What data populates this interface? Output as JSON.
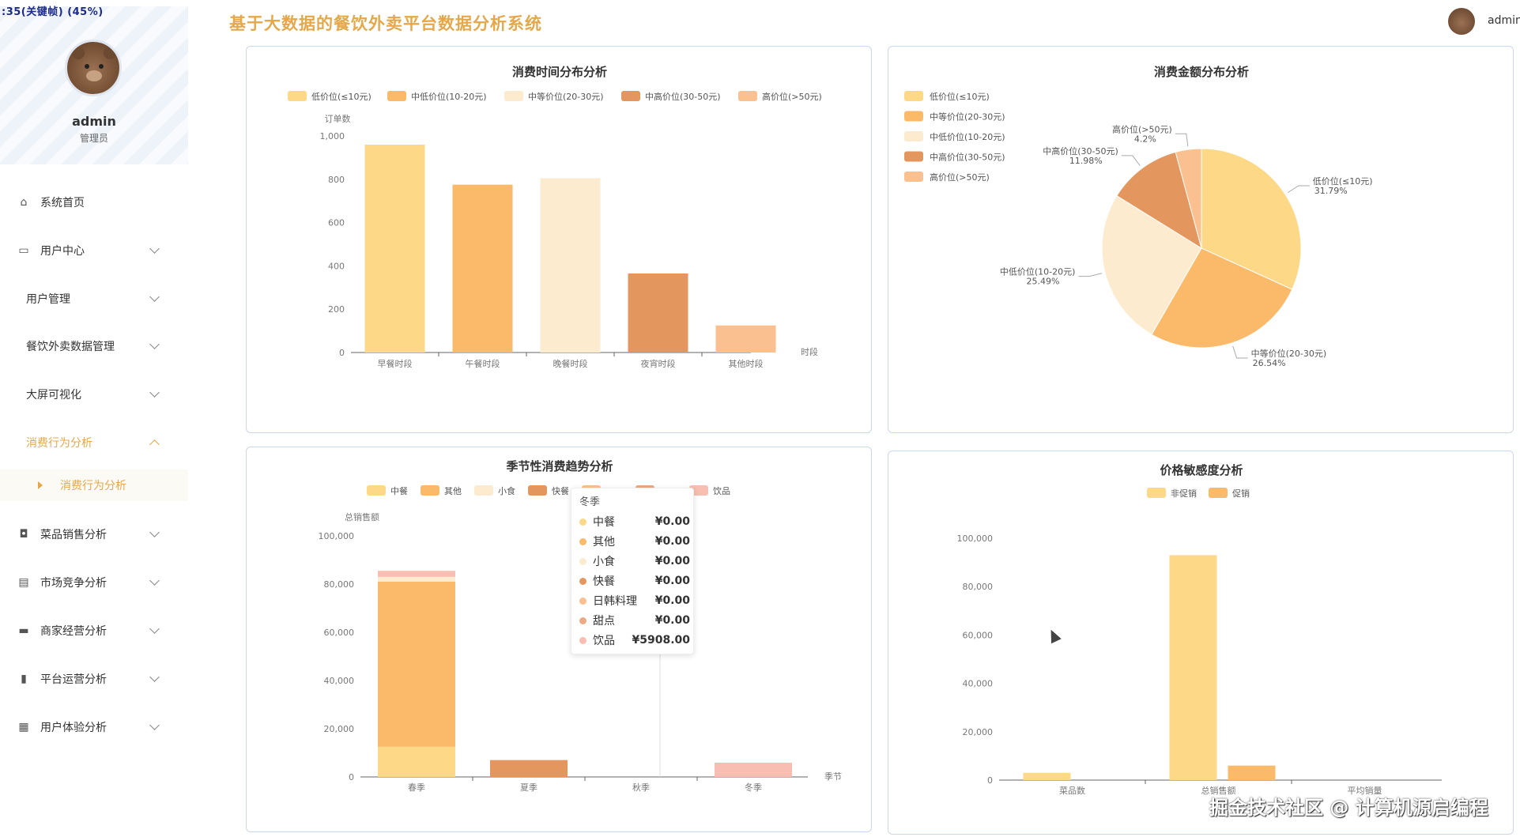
{
  "status_text": ":35(关键帧) (45%)",
  "profile": {
    "username": "admin",
    "role": "管理员"
  },
  "header": {
    "title": "基于大数据的餐饮外卖平台数据分析系统",
    "user": "admin"
  },
  "menu": [
    {
      "label": "系统首页",
      "icon": "home-icon",
      "has_icon": true,
      "chevron": ""
    },
    {
      "label": "用户中心",
      "icon": "id-card-icon",
      "has_icon": true,
      "chevron": "down"
    },
    {
      "label": "用户管理",
      "icon": "",
      "has_icon": false,
      "chevron": "down"
    },
    {
      "label": "餐饮外卖数据管理",
      "icon": "",
      "has_icon": false,
      "chevron": "down"
    },
    {
      "label": "大屏可视化",
      "icon": "",
      "has_icon": false,
      "chevron": "down"
    },
    {
      "label": "消费行为分析",
      "icon": "",
      "has_icon": false,
      "chevron": "up",
      "active": true
    },
    {
      "label": "菜品销售分析",
      "icon": "bag-icon",
      "has_icon": true,
      "chevron": "down"
    },
    {
      "label": "市场竞争分析",
      "icon": "clipboard-icon",
      "has_icon": true,
      "chevron": "down"
    },
    {
      "label": "商家经营分析",
      "icon": "monitor-icon",
      "has_icon": true,
      "chevron": "down"
    },
    {
      "label": "平台运营分析",
      "icon": "bar-chart-icon",
      "has_icon": true,
      "chevron": "down"
    },
    {
      "label": "用户体验分析",
      "icon": "grid-icon",
      "has_icon": true,
      "chevron": "down"
    }
  ],
  "submenu_active": "消费行为分析",
  "colors": {
    "c1": "#fdd887",
    "c2": "#fbb96a",
    "c3": "#fdebcf",
    "c4": "#e3975f",
    "c5": "#fbc08f",
    "c6": "#eca986",
    "c7": "#f7beb1"
  },
  "chart_data": [
    {
      "id": "time",
      "type": "bar",
      "title": "消费时间分布分析",
      "legend": [
        "低价位(≤10元)",
        "中低价位(10-20元)",
        "中等价位(20-30元)",
        "中高价位(30-50元)",
        "高价位(>50元)"
      ],
      "categories": [
        "早餐时段",
        "午餐时段",
        "晚餐时段",
        "夜宵时段",
        "其他时段"
      ],
      "values": [
        960,
        775,
        805,
        365,
        125
      ],
      "ylabel": "订单数",
      "xlabel": "时段",
      "ylim": [
        0,
        1000
      ],
      "yticks": [
        "0",
        "200",
        "400",
        "600",
        "800",
        "1,000"
      ]
    },
    {
      "id": "amount",
      "type": "pie",
      "title": "消费金额分布分析",
      "legend": [
        "低价位(≤10元)",
        "中等价位(20-30元)",
        "中低价位(10-20元)",
        "中高价位(30-50元)",
        "高价位(>50元)"
      ],
      "slices": [
        {
          "name": "低价位(≤10元)",
          "value": 31.79,
          "label": "31.79%"
        },
        {
          "name": "中等价位(20-30元)",
          "value": 26.54,
          "label": "26.54%"
        },
        {
          "name": "中低价位(10-20元)",
          "value": 25.49,
          "label": "25.49%"
        },
        {
          "name": "中高价位(30-50元)",
          "value": 11.98,
          "label": "11.98%"
        },
        {
          "name": "高价位(>50元)",
          "value": 4.2,
          "label": "4.2%"
        }
      ]
    },
    {
      "id": "season",
      "type": "bar",
      "stacked": true,
      "title": "季节性消费趋势分析",
      "legend": [
        "中餐",
        "其他",
        "小食",
        "快餐",
        "",
        "",
        "饮品"
      ],
      "categories": [
        "春季",
        "夏季",
        "秋季",
        "冬季"
      ],
      "series": [
        {
          "name": "中餐",
          "values": [
            12500,
            0,
            0,
            0
          ]
        },
        {
          "name": "其他",
          "values": [
            68500,
            0,
            0,
            0
          ]
        },
        {
          "name": "小食",
          "values": [
            2000,
            0,
            0,
            0
          ]
        },
        {
          "name": "快餐",
          "values": [
            0,
            7000,
            0,
            0
          ]
        },
        {
          "name": "日韩料理",
          "values": [
            0,
            0,
            0,
            0
          ]
        },
        {
          "name": "甜点",
          "values": [
            0,
            0,
            0,
            0
          ]
        },
        {
          "name": "饮品",
          "values": [
            2500,
            0,
            0,
            5908
          ]
        }
      ],
      "ylabel": "总销售额",
      "xlabel": "季节",
      "ylim": [
        0,
        100000
      ],
      "yticks": [
        "0",
        "20,000",
        "40,000",
        "60,000",
        "80,000",
        "100,000"
      ]
    },
    {
      "id": "price",
      "type": "bar",
      "title": "价格敏感度分析",
      "legend": [
        "非促销",
        "促销"
      ],
      "categories": [
        "菜品数",
        "总销售额",
        "平均销量"
      ],
      "series": [
        {
          "name": "非促销",
          "values": [
            3000,
            93000,
            0
          ]
        },
        {
          "name": "促销",
          "values": [
            0,
            6000,
            0
          ]
        }
      ],
      "ylim": [
        0,
        100000
      ],
      "yticks": [
        "0",
        "20,000",
        "40,000",
        "60,000",
        "80,000",
        "100,000"
      ]
    }
  ],
  "tooltip": {
    "title": "冬季",
    "rows": [
      {
        "name": "中餐",
        "value": "¥0.00",
        "color": "#fdd887"
      },
      {
        "name": "其他",
        "value": "¥0.00",
        "color": "#fbb96a"
      },
      {
        "name": "小食",
        "value": "¥0.00",
        "color": "#fdebcf"
      },
      {
        "name": "快餐",
        "value": "¥0.00",
        "color": "#e3975f"
      },
      {
        "name": "日韩料理",
        "value": "¥0.00",
        "color": "#fbc08f"
      },
      {
        "name": "甜点",
        "value": "¥0.00",
        "color": "#eca986"
      },
      {
        "name": "饮品",
        "value": "¥5908.00",
        "color": "#f7beb1"
      }
    ]
  },
  "watermark": "掘金技术社区 @ 计算机源启编程"
}
